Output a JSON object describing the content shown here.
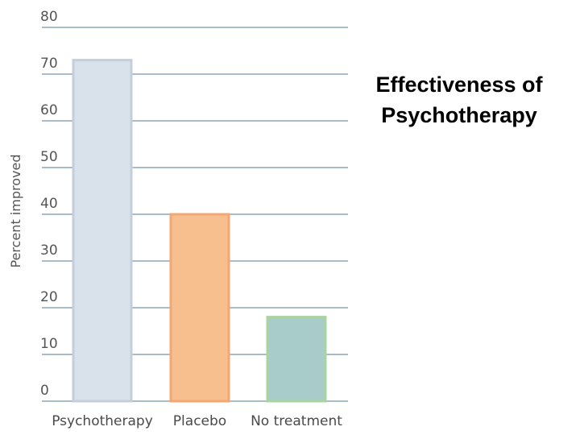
{
  "chart_data": {
    "type": "bar",
    "title_lines": [
      "Effectiveness of",
      "Psychotherapy"
    ],
    "xlabel": "",
    "ylabel": "Percent improved",
    "ylim": [
      0,
      80
    ],
    "yticks": [
      "0",
      "10",
      "20",
      "30",
      "40",
      "50",
      "60",
      "70",
      "80"
    ],
    "grid": true,
    "categories": [
      "Psychotherapy",
      "Placebo",
      "No treatment"
    ],
    "values": [
      73,
      40,
      18
    ],
    "bar_fill": [
      "#d9e1ea",
      "#f6bf8d",
      "#a8ccc9"
    ],
    "bar_stroke": [
      "#c3cfdb",
      "#f2a774",
      "#a9d39f"
    ],
    "gridline_color": "#a9bccb"
  }
}
